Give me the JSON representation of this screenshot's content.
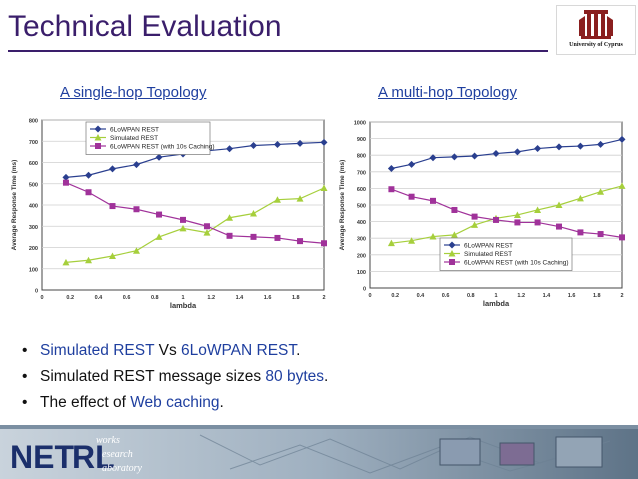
{
  "slide": {
    "title": "Technical Evaluation",
    "logo_text": "University of Cyprus"
  },
  "left_chart_title": "A single-hop Topology",
  "right_chart_title": "A multi-hop Topology",
  "bullets": [
    {
      "parts": [
        {
          "text": "Simulated REST",
          "hl": true
        },
        {
          "text": " Vs ",
          "hl": false
        },
        {
          "text": "6LoWPAN REST",
          "hl": true
        },
        {
          "text": ".",
          "hl": false
        }
      ]
    },
    {
      "parts": [
        {
          "text": "Simulated REST message sizes ",
          "hl": false
        },
        {
          "text": "80 bytes",
          "hl": true
        },
        {
          "text": ".",
          "hl": false
        }
      ]
    },
    {
      "parts": [
        {
          "text": "The effect of ",
          "hl": false
        },
        {
          "text": "Web caching",
          "hl": true
        },
        {
          "text": ".",
          "hl": false
        }
      ]
    }
  ],
  "footer": {
    "logo_main": "NET",
    "logo_sub": "RL",
    "words": [
      "works",
      "esearch",
      "aboratory"
    ]
  },
  "colors": {
    "title": "#3a1e6b",
    "accent": "#1f3f9f",
    "series_6lowpan": "#2a3f8f",
    "series_simulated": "#a6cf3c",
    "series_caching": "#a0329a"
  },
  "chart_data": [
    {
      "type": "line",
      "title": "A single-hop Topology",
      "xlabel": "lambda",
      "ylabel": "Average Response Time (ms)",
      "xlim": [
        0,
        2
      ],
      "ylim": [
        0,
        800
      ],
      "xticks": [
        0,
        0.2,
        0.4,
        0.6,
        0.8,
        1,
        1.2,
        1.4,
        1.6,
        1.8,
        2
      ],
      "xtick_labels": [
        "0",
        "0.2",
        "0.4",
        "0.6",
        "0.8",
        "1",
        "1.2",
        "1.4",
        "1.6",
        "1.8",
        "2"
      ],
      "yticks": [
        0,
        100,
        200,
        300,
        400,
        500,
        600,
        700,
        800
      ],
      "ytick_labels": [
        "0",
        "100",
        "200",
        "300",
        "400",
        "500",
        "600",
        "700",
        "800"
      ],
      "legend_position": "top-left",
      "grid": true,
      "series": [
        {
          "name": "6LoWPAN REST",
          "marker": "diamond",
          "x": [
            0.17,
            0.33,
            0.5,
            0.67,
            0.83,
            1,
            1.17,
            1.33,
            1.5,
            1.67,
            1.83,
            2
          ],
          "y": [
            530,
            540,
            570,
            590,
            625,
            640,
            655,
            665,
            680,
            685,
            690,
            695
          ]
        },
        {
          "name": "Simulated REST",
          "marker": "triangle",
          "x": [
            0.17,
            0.33,
            0.5,
            0.67,
            0.83,
            1,
            1.17,
            1.33,
            1.5,
            1.67,
            1.83,
            2
          ],
          "y": [
            130,
            140,
            160,
            185,
            250,
            290,
            270,
            340,
            360,
            425,
            430,
            480
          ]
        },
        {
          "name": "6LoWPAN REST (with 10s Caching)",
          "marker": "square",
          "x": [
            0.17,
            0.33,
            0.5,
            0.67,
            0.83,
            1,
            1.17,
            1.33,
            1.5,
            1.67,
            1.83,
            2
          ],
          "y": [
            505,
            460,
            395,
            380,
            355,
            330,
            300,
            255,
            250,
            245,
            230,
            220
          ]
        }
      ]
    },
    {
      "type": "line",
      "title": "A multi-hop Topology",
      "xlabel": "lambda",
      "ylabel": "Average Response Time (ms)",
      "xlim": [
        0,
        2
      ],
      "ylim": [
        0,
        1000
      ],
      "xticks": [
        0,
        0.2,
        0.4,
        0.6,
        0.8,
        1,
        1.2,
        1.4,
        1.6,
        1.8,
        2
      ],
      "xtick_labels": [
        "0",
        "0.2",
        "0.4",
        "0.6",
        "0.8",
        "1",
        "1.2",
        "1.4",
        "1.6",
        "1.8",
        "2"
      ],
      "yticks": [
        0,
        100,
        200,
        300,
        400,
        500,
        600,
        700,
        800,
        900,
        1000
      ],
      "ytick_labels": [
        "0",
        "100",
        "200",
        "300",
        "400",
        "500",
        "600",
        "700",
        "800",
        "900",
        "1000"
      ],
      "legend_position": "bottom-center",
      "grid": true,
      "series": [
        {
          "name": "6LoWPAN REST",
          "marker": "diamond",
          "x": [
            0.17,
            0.33,
            0.5,
            0.67,
            0.83,
            1,
            1.17,
            1.33,
            1.5,
            1.67,
            1.83,
            2
          ],
          "y": [
            720,
            745,
            785,
            790,
            795,
            810,
            820,
            840,
            850,
            855,
            865,
            895
          ]
        },
        {
          "name": "Simulated REST",
          "marker": "triangle",
          "x": [
            0.17,
            0.33,
            0.5,
            0.67,
            0.83,
            1,
            1.17,
            1.33,
            1.5,
            1.67,
            1.83,
            2
          ],
          "y": [
            270,
            285,
            310,
            320,
            380,
            420,
            440,
            470,
            500,
            540,
            580,
            615
          ]
        },
        {
          "name": "6LoWPAN REST (with 10s Caching)",
          "marker": "square",
          "x": [
            0.17,
            0.33,
            0.5,
            0.67,
            0.83,
            1,
            1.17,
            1.33,
            1.5,
            1.67,
            1.83,
            2
          ],
          "y": [
            595,
            550,
            525,
            470,
            430,
            410,
            395,
            395,
            370,
            335,
            325,
            305
          ]
        }
      ]
    }
  ]
}
